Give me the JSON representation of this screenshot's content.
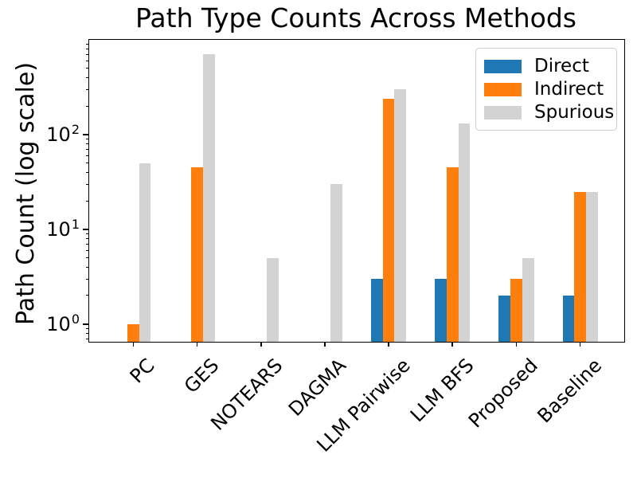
{
  "chart_data": {
    "type": "bar",
    "title": "Path Type Counts Across Methods",
    "xlabel": "",
    "ylabel": "Path Count (log scale)",
    "yscale": "log",
    "ylim": [
      0.65,
      1000
    ],
    "grid": false,
    "legend_position": "upper right",
    "x_tick_rotation": 45,
    "categories": [
      "PC",
      "GES",
      "NOTEARS",
      "DAGMA",
      "LLM Pairwise",
      "LLM BFS",
      "Proposed",
      "Baseline"
    ],
    "series": [
      {
        "name": "Direct",
        "color": "#1f77b4",
        "values": [
          0,
          0,
          0,
          0,
          3,
          3,
          2,
          2
        ]
      },
      {
        "name": "Indirect",
        "color": "#ff7f0e",
        "values": [
          1,
          45,
          0,
          0,
          240,
          45,
          3,
          25
        ]
      },
      {
        "name": "Spurious",
        "color": "#d3d3d3",
        "values": [
          50,
          700,
          5,
          30,
          300,
          130,
          5,
          25
        ]
      }
    ],
    "yticks": [
      {
        "value": 1,
        "base": "10",
        "exp": "0"
      },
      {
        "value": 10,
        "base": "10",
        "exp": "1"
      },
      {
        "value": 100,
        "base": "10",
        "exp": "2"
      }
    ]
  },
  "colors": {
    "axis": "#000000",
    "background": "#ffffff",
    "legend_border": "#cccccc"
  }
}
